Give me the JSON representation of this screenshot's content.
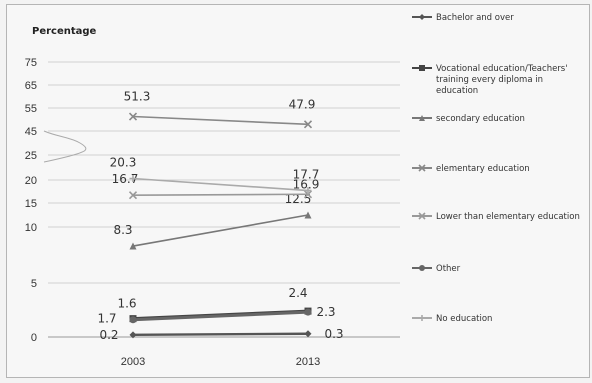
{
  "chart_data": {
    "type": "line",
    "ylabel": "Percentage",
    "x": [
      "2003",
      "2013"
    ],
    "y_ticks": [
      "0",
      "5",
      "10",
      "15",
      "20",
      "25",
      "45",
      "55",
      "65",
      "75"
    ],
    "y_axis_break": "between 25 and 45",
    "grid": "horizontal",
    "legend_position": "right",
    "series": [
      {
        "name": "Bachelor and over",
        "values": [
          0.2,
          0.3
        ],
        "labels": [
          "0.2",
          "0.3"
        ],
        "color": "#555555",
        "marker": "diamond"
      },
      {
        "name": "Vocational education/Teachers' training every diploma in education",
        "values": [
          1.7,
          2.4
        ],
        "labels": [
          "1.7",
          "2.4"
        ],
        "color": "#444444",
        "marker": "square"
      },
      {
        "name": "secondary education",
        "values": [
          8.3,
          12.5
        ],
        "labels": [
          "8.3",
          "12.5"
        ],
        "color": "#777777",
        "marker": "triangle"
      },
      {
        "name": "elementary education",
        "values": [
          51.3,
          47.9
        ],
        "labels": [
          "51.3",
          "47.9"
        ],
        "color": "#888888",
        "marker": "x"
      },
      {
        "name": "Lower than elementary education",
        "values": [
          16.7,
          16.9
        ],
        "labels": [
          "16.7",
          "16.9"
        ],
        "color": "#999999",
        "marker": "x"
      },
      {
        "name": "Other",
        "values": [
          1.6,
          2.3
        ],
        "labels": [
          "1.6",
          "2.3"
        ],
        "color": "#666666",
        "marker": "circle"
      },
      {
        "name": "No education",
        "values": [
          20.3,
          17.7
        ],
        "labels": [
          "20.3",
          "17.7"
        ],
        "color": "#aaaaaa",
        "marker": "plus"
      }
    ]
  }
}
